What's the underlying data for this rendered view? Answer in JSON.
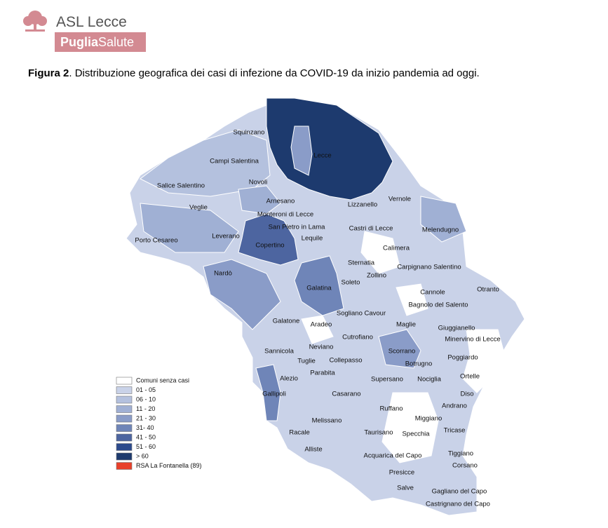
{
  "header": {
    "org": "ASL Lecce",
    "brand_bold": "Puglia",
    "brand_light": "Salute"
  },
  "caption": {
    "label": "Figura 2",
    "text": ". Distribuzione  geografica dei  casi di infezione  da  COVID-19 da inizio pandemia ad oggi."
  },
  "map": {
    "labels": [
      "Squinzano",
      "Campi Salentina",
      "Lecce",
      "Salice Salentino",
      "Novoli",
      "Veglie",
      "Arnesano",
      "Lizzanello",
      "Vernole",
      "Monteroni di Lecce",
      "San Pietro in Lama",
      "Castri di Lecce",
      "Melendugno",
      "Porto Cesareo",
      "Leverano",
      "Lequile",
      "Copertino",
      "Calimera",
      "Sternatia",
      "Carpignano Salentino",
      "Nardò",
      "Zollino",
      "Soleto",
      "Cannole",
      "Otranto",
      "Galatina",
      "Bagnolo del Salento",
      "Sogliano Cavour",
      "Galatone",
      "Aradeo",
      "Maglie",
      "Giuggianello",
      "Cutrofiano",
      "Minervino di Lecce",
      "Neviano",
      "Sannicola",
      "Scorrano",
      "Poggiardo",
      "Tuglie",
      "Collepasso",
      "Botrugno",
      "Parabita",
      "Alezio",
      "Supersano",
      "Nociglia",
      "Ortelle",
      "Gallipoli",
      "Casarano",
      "Diso",
      "Ruffano",
      "Andrano",
      "Melissano",
      "Miggiano",
      "Racale",
      "Taurisano",
      "Specchia",
      "Tricase",
      "Alliste",
      "Acquarica del Capo",
      "Tiggiano",
      "Corsano",
      "Presicce",
      "Salve",
      "Gagliano del Capo",
      "Castrignano del Capo"
    ],
    "legend": [
      {
        "label": "Comuni senza casi",
        "color": "#ffffff"
      },
      {
        "label": "01 - 05",
        "color": "#c9d2e8"
      },
      {
        "label": "06 - 10",
        "color": "#b4c1de"
      },
      {
        "label": "11 - 20",
        "color": "#a0b0d4"
      },
      {
        "label": "21 - 30",
        "color": "#8a9cc8"
      },
      {
        "label": "31- 40",
        "color": "#6f85b8"
      },
      {
        "label": "41 - 50",
        "color": "#4d65a0"
      },
      {
        "label": "51 - 60",
        "color": "#2c4a8c"
      },
      {
        "label": "> 60",
        "color": "#1d3a6e"
      },
      {
        "label": "RSA La Fontanella (89)",
        "color": "#e8402a"
      }
    ]
  }
}
